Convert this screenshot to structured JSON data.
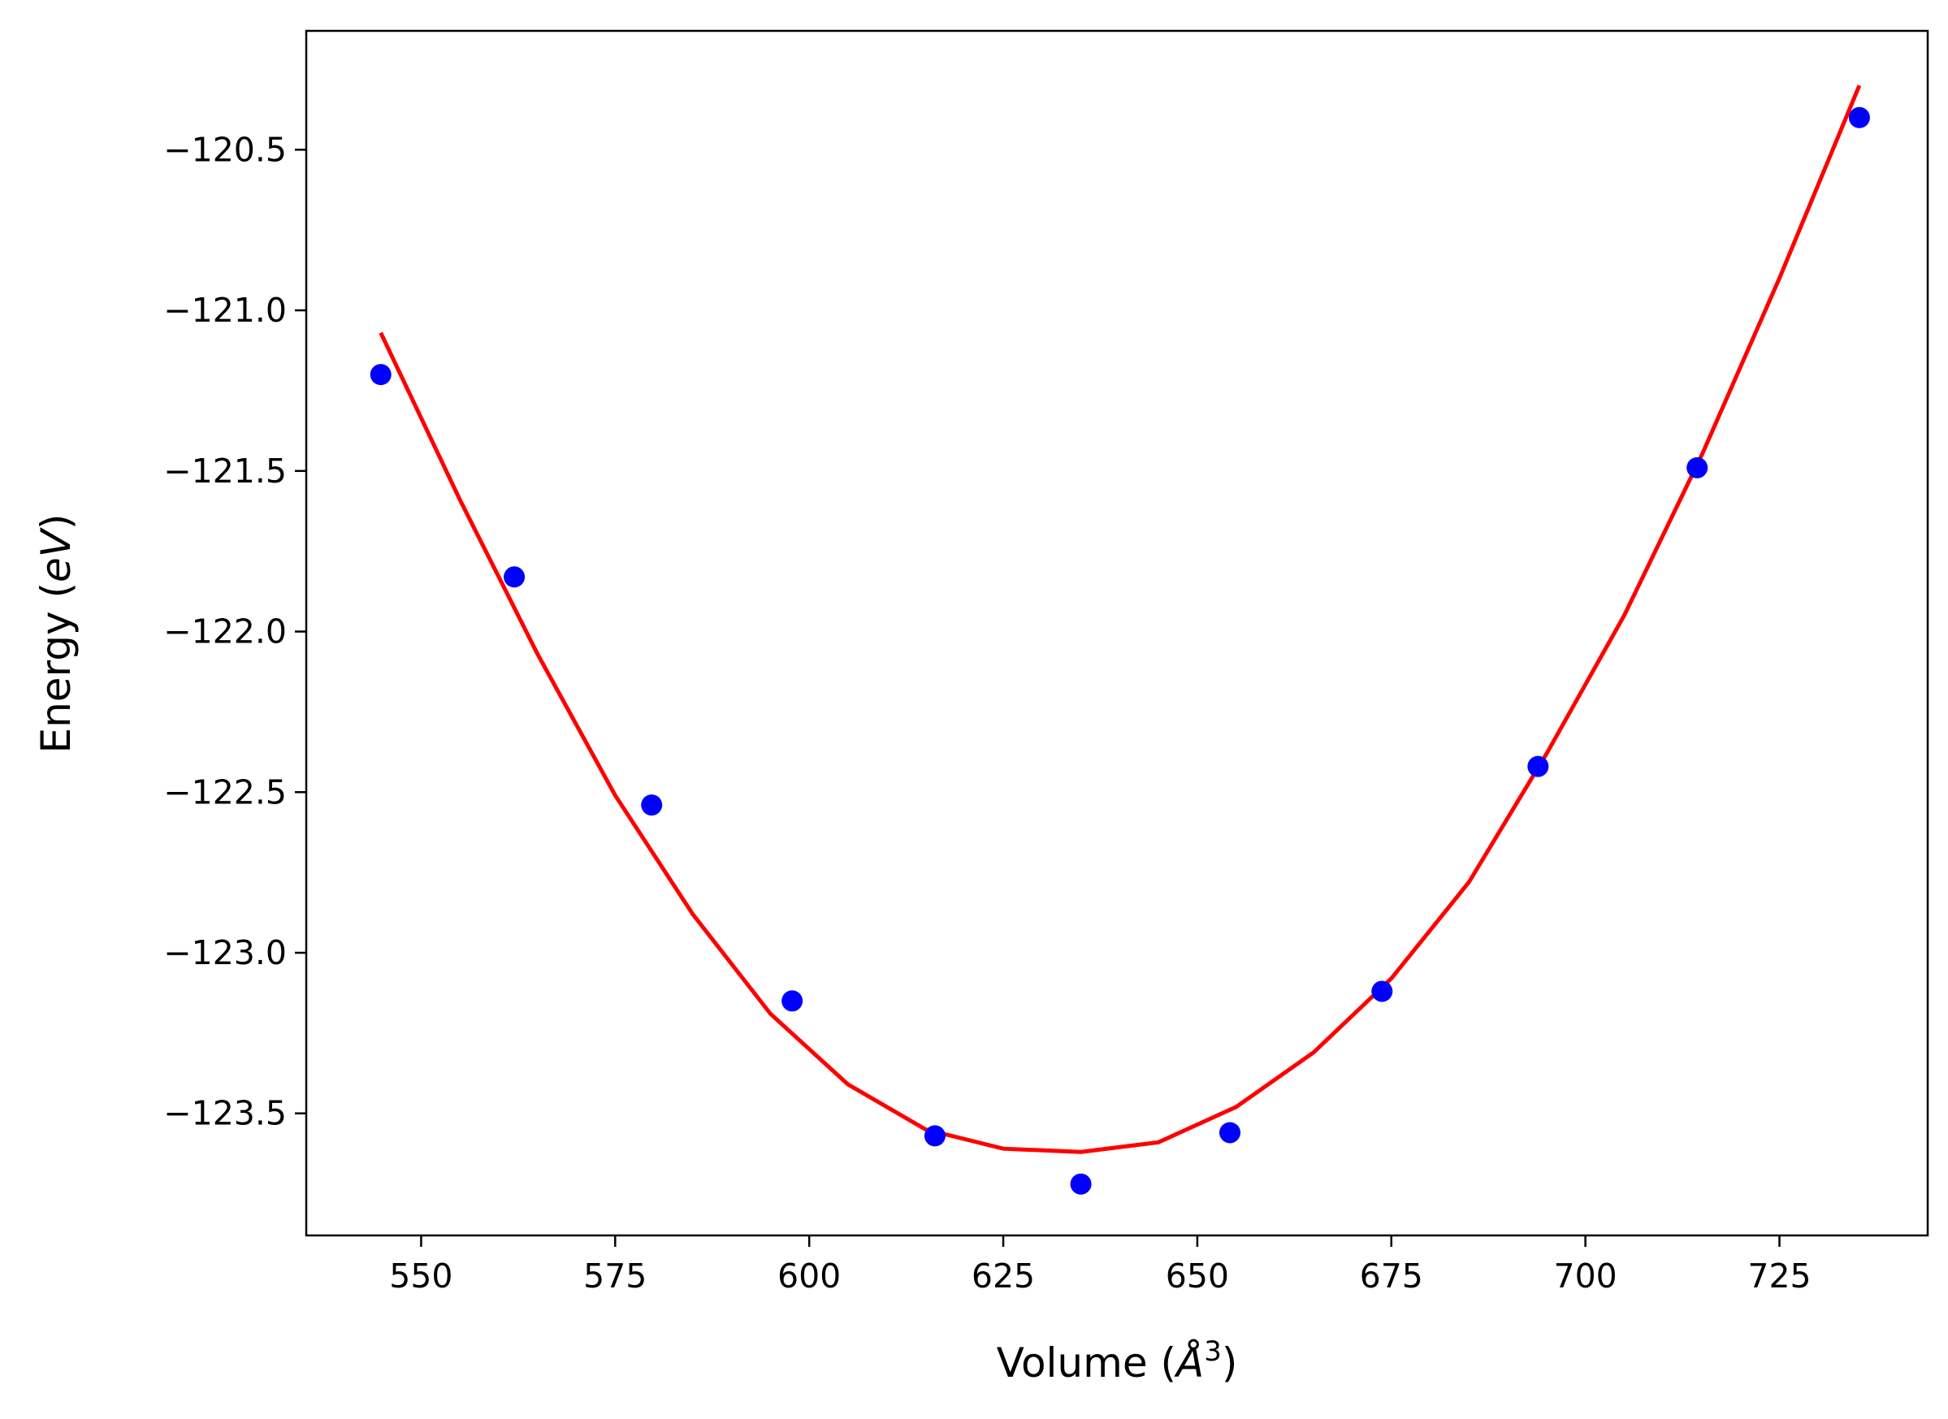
{
  "chart_data": {
    "type": "scatter",
    "xlabel": "Volume (Å³)",
    "ylabel": "Energy (eV)",
    "xlabel_parts": {
      "prefix": "Volume (",
      "symbol": "Å",
      "power": "3",
      "suffix": ")"
    },
    "ylabel_parts": {
      "prefix": "Energy (",
      "unit": "eV",
      "suffix": ")"
    },
    "xlim": [
      535.2,
      744.1
    ],
    "ylim": [
      -123.88,
      -120.13
    ],
    "xticks": [
      550,
      575,
      600,
      625,
      650,
      675,
      700,
      725
    ],
    "xtick_labels": [
      "550",
      "575",
      "600",
      "625",
      "650",
      "675",
      "700",
      "725"
    ],
    "yticks": [
      -120.5,
      -121.0,
      -121.5,
      -122.0,
      -122.5,
      -123.0,
      -123.5
    ],
    "ytick_labels": [
      "−120.5",
      "−121.0",
      "−121.5",
      "−122.0",
      "−122.5",
      "−123.0",
      "−123.5"
    ],
    "grid": false,
    "series": [
      {
        "kind": "points",
        "color": "#0000ff",
        "x": [
          544.8,
          562.0,
          579.7,
          597.8,
          616.2,
          635.0,
          654.2,
          673.8,
          693.9,
          714.4,
          735.3
        ],
        "y": [
          -121.2,
          -121.83,
          -122.54,
          -123.15,
          -123.57,
          -123.72,
          -123.56,
          -123.12,
          -122.42,
          -121.49,
          -120.4
        ]
      },
      {
        "kind": "fit-curve",
        "color": "#ff0000",
        "x": [
          544.8,
          555,
          565,
          575,
          585,
          595,
          605,
          615,
          625,
          635,
          645,
          655,
          665,
          675,
          685,
          695,
          705,
          715,
          725,
          735.3
        ],
        "y": [
          -121.07,
          -121.59,
          -122.07,
          -122.51,
          -122.88,
          -123.19,
          -123.41,
          -123.55,
          -123.61,
          -123.62,
          -123.59,
          -123.48,
          -123.31,
          -123.08,
          -122.78,
          -122.38,
          -121.95,
          -121.45,
          -120.9,
          -120.3
        ]
      }
    ]
  }
}
